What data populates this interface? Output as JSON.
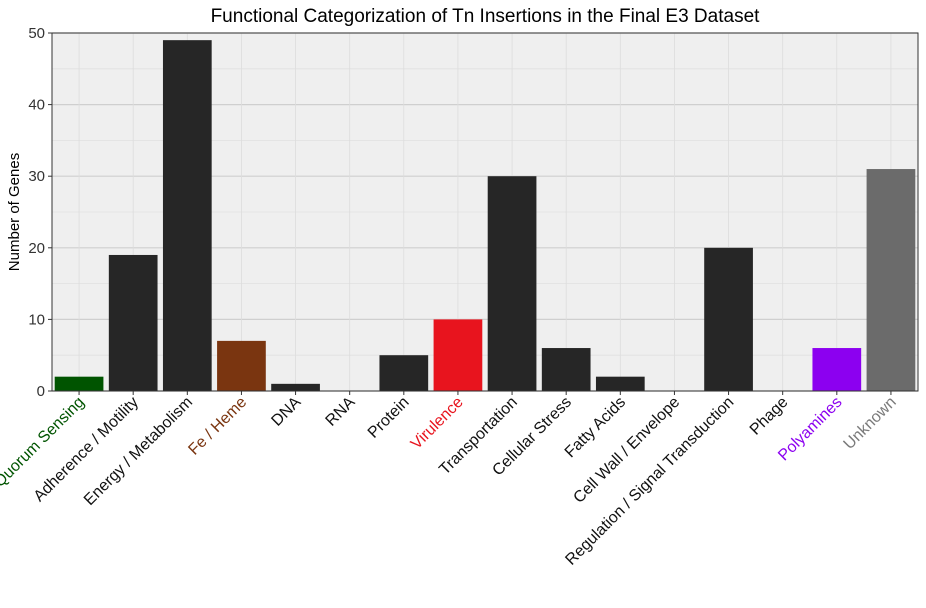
{
  "chart_data": {
    "type": "bar",
    "title": "Functional Categorization of Tn Insertions in the Final E3 Dataset",
    "xlabel": "",
    "ylabel": "Number of Genes",
    "ylim": [
      0,
      50
    ],
    "yticks": [
      0,
      10,
      20,
      30,
      40,
      50
    ],
    "grid": true,
    "legend": "none",
    "categories": [
      "Quorum Sensing",
      "Adherence / Motility",
      "Energy / Metabolism",
      "Fe / Heme",
      "DNA",
      "RNA",
      "Protein",
      "Virulence",
      "Transportation",
      "Cellular Stress",
      "Fatty Acids",
      "Cell Wall / Envelope",
      "Regulation / Signal Transduction",
      "Phage",
      "Polyamines",
      "Unknown"
    ],
    "values": [
      2,
      19,
      49,
      7,
      1,
      0,
      5,
      10,
      30,
      6,
      2,
      0,
      20,
      0,
      6,
      31
    ],
    "bar_colors": [
      "#005400",
      "#262626",
      "#262626",
      "#7a3510",
      "#262626",
      "#262626",
      "#262626",
      "#e8141e",
      "#262626",
      "#262626",
      "#262626",
      "#262626",
      "#262626",
      "#262626",
      "#8c00f0",
      "#6b6b6b"
    ],
    "label_colors": [
      "#005400",
      "#111111",
      "#111111",
      "#7a3510",
      "#111111",
      "#111111",
      "#111111",
      "#e8141e",
      "#111111",
      "#111111",
      "#111111",
      "#111111",
      "#111111",
      "#111111",
      "#8c00f0",
      "#7a7a7a"
    ],
    "panel_background": "#efefef",
    "grid_color": "#cfcfcf"
  }
}
